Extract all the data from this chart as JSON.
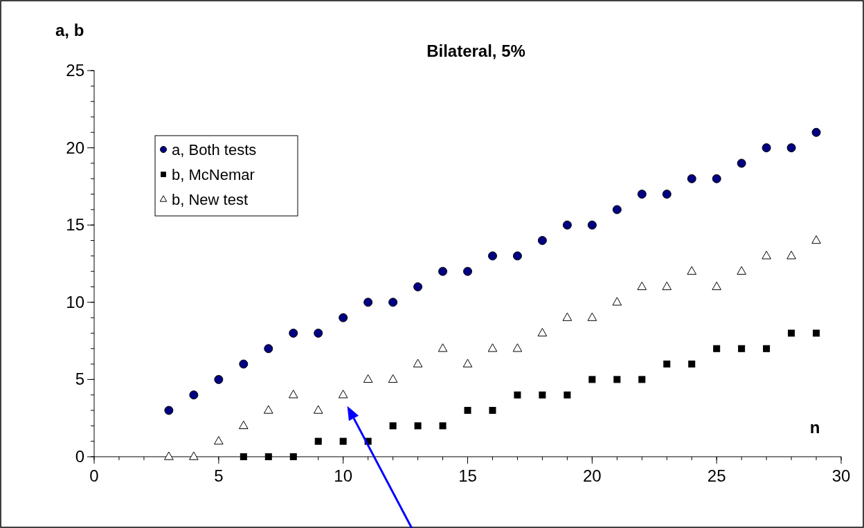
{
  "chart_data": {
    "type": "scatter",
    "title": "Bilateral, 5%",
    "xlabel": "n",
    "ylabel": "a, b",
    "xlim": [
      0,
      30
    ],
    "xticks": [
      0,
      5,
      10,
      15,
      20,
      25,
      30
    ],
    "ylim": [
      0,
      25
    ],
    "yticks": [
      0,
      5,
      10,
      15,
      20,
      25
    ],
    "grid": false,
    "legend": "top left",
    "series": [
      {
        "name": "a, Both tests",
        "color": "#000080",
        "marker": "circle",
        "x": [
          3,
          4,
          5,
          6,
          7,
          8,
          9,
          10,
          11,
          12,
          13,
          14,
          15,
          16,
          17,
          18,
          19,
          20,
          21,
          22,
          23,
          24,
          25,
          26,
          27,
          28,
          29
        ],
        "values": [
          3,
          4,
          5,
          6,
          7,
          8,
          8,
          9,
          10,
          10,
          11,
          12,
          12,
          13,
          13,
          14,
          15,
          15,
          16,
          17,
          17,
          18,
          18,
          19,
          20,
          20,
          21
        ]
      },
      {
        "name": "b, McNemar",
        "color": "#000000",
        "marker": "square",
        "x": [
          6,
          7,
          8,
          9,
          10,
          11,
          12,
          13,
          14,
          15,
          16,
          17,
          18,
          19,
          20,
          21,
          22,
          23,
          24,
          25,
          26,
          27,
          28,
          29
        ],
        "values": [
          0,
          0,
          0,
          1,
          1,
          1,
          2,
          2,
          2,
          3,
          3,
          4,
          4,
          4,
          5,
          5,
          5,
          6,
          6,
          7,
          7,
          7,
          8,
          8
        ]
      },
      {
        "name": "b, New test",
        "color": "#ffffff",
        "marker": "triangle",
        "x": [
          3,
          4,
          5,
          6,
          7,
          8,
          9,
          10,
          11,
          12,
          13,
          14,
          15,
          16,
          17,
          18,
          19,
          20,
          21,
          22,
          23,
          24,
          25,
          26,
          27,
          28,
          29
        ],
        "values": [
          0,
          0,
          1,
          2,
          3,
          4,
          3,
          4,
          5,
          5,
          6,
          7,
          6,
          7,
          7,
          8,
          9,
          9,
          10,
          11,
          11,
          12,
          11,
          12,
          13,
          13,
          14
        ]
      }
    ]
  }
}
